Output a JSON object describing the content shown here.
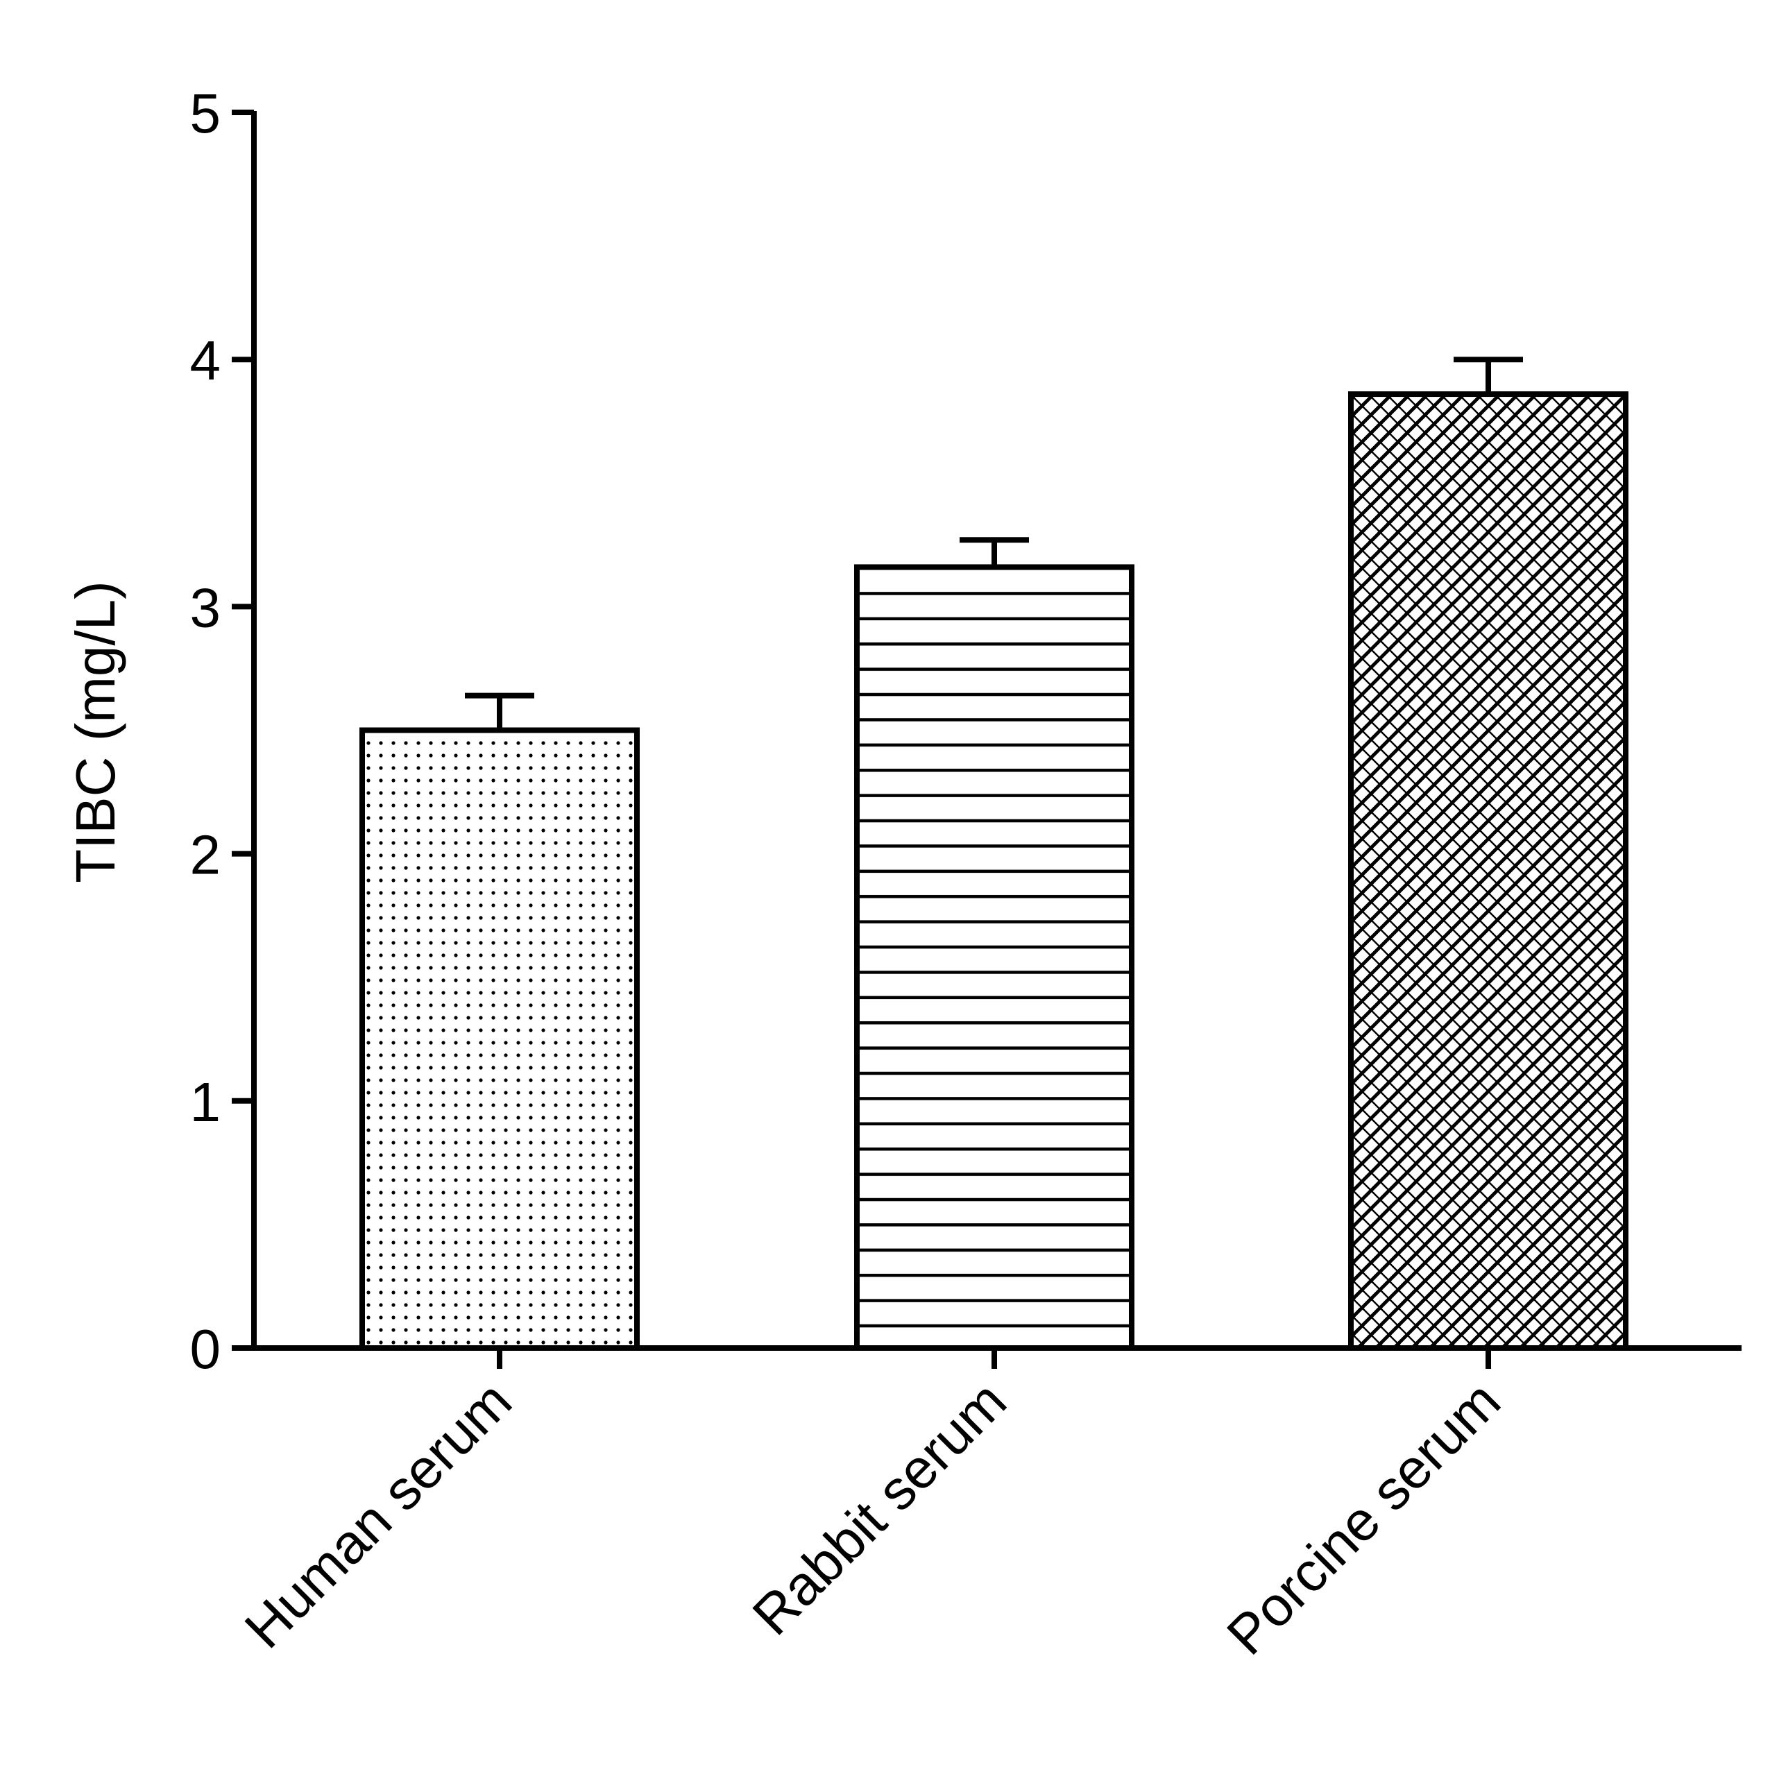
{
  "chart_data": {
    "type": "bar",
    "title": "",
    "xlabel": "",
    "ylabel": "TIBC (mg/L)",
    "ylim": [
      0,
      5
    ],
    "yticks": [
      "0",
      "1",
      "2",
      "3",
      "4",
      "5"
    ],
    "categories": [
      "Human serum",
      "Rabbit serum",
      "Porcine serum"
    ],
    "values": [
      2.5,
      3.16,
      3.86
    ],
    "errors": [
      0.14,
      0.11,
      0.14
    ],
    "fill_patterns": [
      "dots",
      "horizontal-lines",
      "crosshatch"
    ],
    "grid": false,
    "legend": "none",
    "colors": {
      "stroke": "#000000",
      "fill": "#ffffff"
    }
  }
}
